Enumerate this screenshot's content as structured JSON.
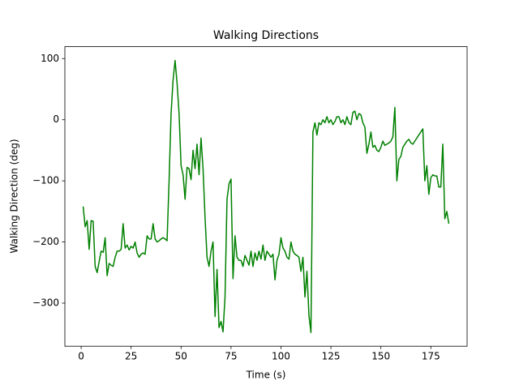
{
  "chart_data": {
    "type": "line",
    "title": "Walking Directions",
    "x_label": "Time (s)",
    "y_label": "Walking Direction (deg)",
    "x": [
      1,
      2,
      3,
      4,
      5,
      6,
      7,
      8,
      9,
      10,
      11,
      12,
      13,
      14,
      15,
      16,
      17,
      18,
      19,
      20,
      21,
      22,
      23,
      24,
      25,
      26,
      27,
      28,
      29,
      30,
      31,
      32,
      33,
      34,
      35,
      36,
      37,
      38,
      39,
      40,
      41,
      42,
      43,
      44,
      45,
      46,
      47,
      48,
      49,
      50,
      51,
      52,
      53,
      54,
      55,
      56,
      57,
      58,
      59,
      60,
      61,
      62,
      63,
      64,
      65,
      66,
      67,
      68,
      69,
      70,
      71,
      72,
      73,
      74,
      75,
      76,
      77,
      78,
      79,
      80,
      81,
      82,
      83,
      84,
      85,
      86,
      87,
      88,
      89,
      90,
      91,
      92,
      93,
      94,
      95,
      96,
      97,
      98,
      99,
      100,
      101,
      102,
      103,
      104,
      105,
      106,
      107,
      108,
      109,
      110,
      111,
      112,
      113,
      114,
      115,
      116,
      117,
      118,
      119,
      120,
      121,
      122,
      123,
      124,
      125,
      126,
      127,
      128,
      129,
      130,
      131,
      132,
      133,
      134,
      135,
      136,
      137,
      138,
      139,
      140,
      141,
      142,
      143,
      144,
      145,
      146,
      147,
      148,
      149,
      150,
      151,
      152,
      153,
      154,
      155,
      156,
      157,
      158,
      159,
      160,
      161,
      162,
      163,
      164,
      165,
      166,
      167,
      168,
      169,
      170,
      171,
      172,
      173,
      174,
      175,
      176,
      177,
      178,
      179,
      180,
      181,
      182,
      183,
      184
    ],
    "values": [
      -142,
      -175,
      -165,
      -212,
      -165,
      -166,
      -240,
      -250,
      -232,
      -215,
      -217,
      -193,
      -255,
      -235,
      -238,
      -240,
      -225,
      -215,
      -215,
      -212,
      -170,
      -210,
      -205,
      -213,
      -207,
      -210,
      -200,
      -218,
      -225,
      -220,
      -218,
      -220,
      -190,
      -195,
      -195,
      -170,
      -195,
      -200,
      -198,
      -195,
      -193,
      -195,
      -198,
      -100,
      10,
      65,
      97,
      60,
      10,
      -75,
      -90,
      -130,
      -78,
      -80,
      -98,
      -50,
      -80,
      -40,
      -90,
      -30,
      -80,
      -160,
      -225,
      -240,
      -215,
      -200,
      -322,
      -245,
      -340,
      -330,
      -347,
      -290,
      -130,
      -105,
      -97,
      -260,
      -190,
      -225,
      -230,
      -230,
      -240,
      -222,
      -230,
      -238,
      -215,
      -240,
      -218,
      -230,
      -215,
      -228,
      -205,
      -230,
      -215,
      -220,
      -225,
      -220,
      -262,
      -230,
      -220,
      -193,
      -210,
      -215,
      -225,
      -228,
      -200,
      -215,
      -220,
      -222,
      -225,
      -248,
      -225,
      -290,
      -248,
      -320,
      -348,
      -20,
      -5,
      -25,
      -5,
      -8,
      0,
      -5,
      5,
      -5,
      0,
      -8,
      -3,
      5,
      5,
      -5,
      0,
      -8,
      5,
      -5,
      -8,
      12,
      14,
      0,
      10,
      8,
      -5,
      -12,
      -55,
      -40,
      -20,
      -45,
      -42,
      -50,
      -52,
      -45,
      -35,
      -42,
      -40,
      -38,
      -35,
      -28,
      20,
      -100,
      -65,
      -60,
      -45,
      -40,
      -35,
      -32,
      -38,
      -40,
      -35,
      -30,
      -25,
      -20,
      -15,
      -100,
      -75,
      -122,
      -95,
      -90,
      -92,
      -92,
      -110,
      -110,
      -40,
      -162,
      -150,
      -170
    ],
    "color": "#008000",
    "xlim": [
      -8.15,
      193.15
    ],
    "ylim": [
      -370.5,
      119.5
    ],
    "xticks": [
      0,
      25,
      50,
      75,
      100,
      125,
      150,
      175
    ],
    "yticks": [
      {
        "value": -300,
        "label": "−300"
      },
      {
        "value": -200,
        "label": "−200"
      },
      {
        "value": -100,
        "label": "−100"
      },
      0,
      100
    ]
  }
}
